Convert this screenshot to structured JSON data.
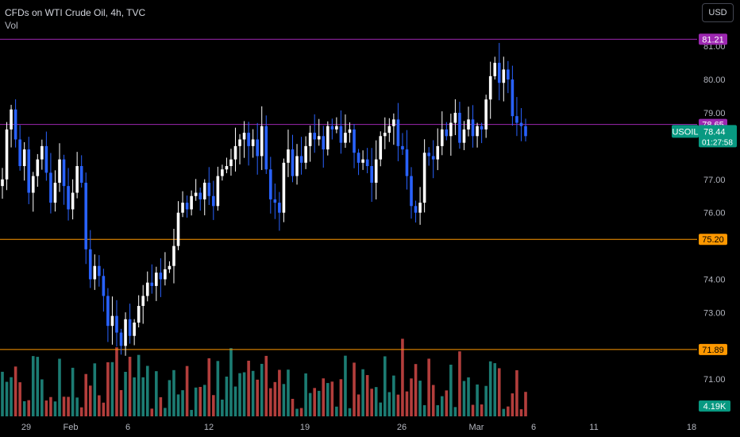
{
  "header": {
    "title": "CFDs on WTI Crude Oil, 4h, TVC",
    "indicator": "Vol"
  },
  "currency_button": "USD",
  "colors": {
    "up": "#ffffff",
    "down": "#2962ff",
    "vol_up": "#26a69a",
    "vol_down": "#ef5350",
    "purple": "#9c27b0",
    "orange": "#ff9800",
    "green_tag": "#089981",
    "grid_text": "#b2b5be"
  },
  "chart_data": {
    "type": "candlestick",
    "title": "CFDs on WTI Crude Oil, 4h, TVC",
    "y_ticks": [
      "71.00",
      "73.00",
      "74.00",
      "76.00",
      "77.00",
      "79.00",
      "80.00",
      "81.00"
    ],
    "ylim": [
      70.6,
      81.6
    ],
    "x_ticks": [
      "29",
      "Feb",
      "6",
      "12",
      "19",
      "26",
      "Mar",
      "6",
      "11",
      "18"
    ],
    "horizontal_lines": [
      {
        "value": 81.21,
        "label": "81.21",
        "color": "#9c27b0"
      },
      {
        "value": 78.65,
        "label": "78.65",
        "color": "#9c27b0"
      },
      {
        "value": 75.2,
        "label": "75.20",
        "color": "#ff9800"
      },
      {
        "value": 71.89,
        "label": "71.89",
        "color": "#ff9800"
      }
    ],
    "last_price": {
      "symbol": "USOIL",
      "price": "78.44",
      "countdown": "01:27:58",
      "value": 78.44
    },
    "volume_label": "4.19K",
    "series_close": [
      77.0,
      78.5,
      79.1,
      78.2,
      77.4,
      77.9,
      76.6,
      77.1,
      77.6,
      78.0,
      77.2,
      76.3,
      76.9,
      77.6,
      76.8,
      76.1,
      76.6,
      77.4,
      76.9,
      74.9,
      74.0,
      74.4,
      74.1,
      73.5,
      72.6,
      72.9,
      72.4,
      72.0,
      72.8,
      72.3,
      72.7,
      73.2,
      73.5,
      73.9,
      73.8,
      74.2,
      74.0,
      74.3,
      74.4,
      75.0,
      76.0,
      76.3,
      76.1,
      76.5,
      76.6,
      76.4,
      76.9,
      76.5,
      76.2,
      77.1,
      77.3,
      77.4,
      77.6,
      78.0,
      78.2,
      78.4,
      78.0,
      78.2,
      77.7,
      78.6,
      77.3,
      76.4,
      76.3,
      76.0,
      77.5,
      77.9,
      77.1,
      77.7,
      77.5,
      78.0,
      78.4,
      78.2,
      78.3,
      77.9,
      78.6,
      78.5,
      78.6,
      78.1,
      78.4,
      78.5,
      77.8,
      77.5,
      77.6,
      77.4,
      76.9,
      77.6,
      78.3,
      78.4,
      78.6,
      78.8,
      78.0,
      77.9,
      77.1,
      76.2,
      76.0,
      76.3,
      77.8,
      77.7,
      77.6,
      78.0,
      78.5,
      78.3,
      78.7,
      79.0,
      78.1,
      78.5,
      78.8,
      78.3,
      78.6,
      78.5,
      79.4,
      80.1,
      80.5,
      79.9,
      80.3,
      80.0,
      78.9,
      78.7,
      78.6,
      78.3
    ]
  }
}
